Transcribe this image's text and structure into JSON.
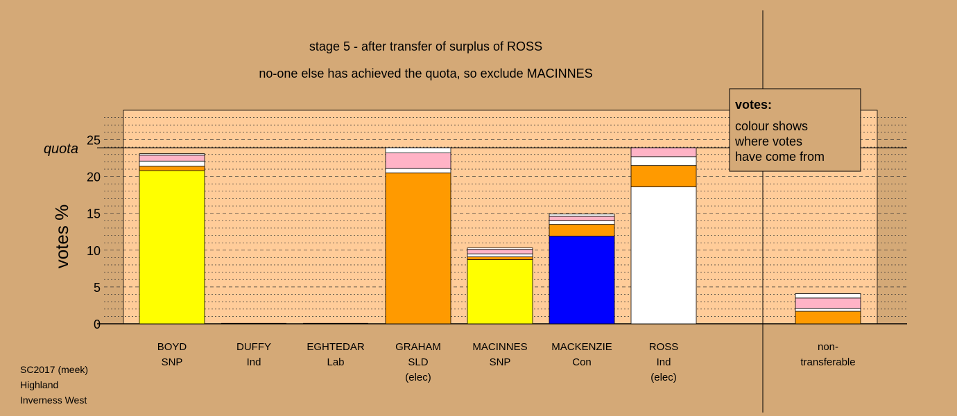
{
  "chart_data": {
    "type": "bar",
    "title": "stage 5 - after transfer of surplus of ROSS",
    "subtitle": "no-one else has achieved the quota, so exclude MACINNES",
    "ylabel": "votes %",
    "ylim": [
      0,
      29
    ],
    "yticks": [
      0,
      5,
      10,
      15,
      20,
      25
    ],
    "quota": 23.9,
    "quota_label": "quota",
    "grid": true,
    "legend": {
      "position": "top-right",
      "title": "votes:",
      "lines": [
        "colour shows",
        "where votes",
        "have come from"
      ]
    },
    "colors": {
      "SNP": "#ffff00",
      "SLD": "#ff9a00",
      "Con": "#0000ff",
      "Ind": "#ffffff",
      "Lab": "#ff0000",
      "other": "#ffb3c6",
      "plot_bg": "#ffcc99",
      "background": "#d4a977"
    },
    "categories": [
      {
        "name": "BOYD",
        "party": "SNP",
        "note": "",
        "segments": [
          {
            "from": "SNP",
            "value": 20.8
          },
          {
            "from": "SLD",
            "value": 0.6
          },
          {
            "from": "Ind",
            "value": 0.7
          },
          {
            "from": "other",
            "value": 0.8
          },
          {
            "from": "Ind",
            "value": 0.2
          }
        ]
      },
      {
        "name": "DUFFY",
        "party": "Ind",
        "note": "",
        "segments": []
      },
      {
        "name": "EGHTEDAR",
        "party": "Lab",
        "note": "",
        "segments": []
      },
      {
        "name": "GRAHAM",
        "party": "SLD",
        "note": "(elec)",
        "segments": [
          {
            "from": "SLD",
            "value": 20.5
          },
          {
            "from": "Ind",
            "value": 0.6
          },
          {
            "from": "other",
            "value": 2.1
          },
          {
            "from": "Ind",
            "value": 0.7
          }
        ]
      },
      {
        "name": "MACINNES",
        "party": "SNP",
        "note": "",
        "segments": [
          {
            "from": "SNP",
            "value": 8.7
          },
          {
            "from": "SLD",
            "value": 0.4
          },
          {
            "from": "Ind",
            "value": 0.4
          },
          {
            "from": "other",
            "value": 0.6
          },
          {
            "from": "Ind",
            "value": 0.2
          }
        ]
      },
      {
        "name": "MACKENZIE",
        "party": "Con",
        "note": "",
        "segments": [
          {
            "from": "Con",
            "value": 11.9
          },
          {
            "from": "SLD",
            "value": 1.6
          },
          {
            "from": "Ind",
            "value": 0.5
          },
          {
            "from": "other",
            "value": 0.6
          },
          {
            "from": "Ind",
            "value": 0.3
          }
        ]
      },
      {
        "name": "ROSS",
        "party": "Ind",
        "note": "(elec)",
        "segments": [
          {
            "from": "Ind",
            "value": 18.6
          },
          {
            "from": "SLD",
            "value": 2.9
          },
          {
            "from": "Ind",
            "value": 1.2
          },
          {
            "from": "other",
            "value": 1.2
          }
        ]
      }
    ],
    "nontransferable": {
      "label_lines": [
        "non-",
        "transferable"
      ],
      "segments": [
        {
          "from": "SLD",
          "value": 1.7
        },
        {
          "from": "Ind",
          "value": 0.4
        },
        {
          "from": "other",
          "value": 1.4
        },
        {
          "from": "Ind",
          "value": 0.6
        }
      ]
    }
  },
  "footer": {
    "lines": [
      "SC2017 (meek)",
      "Highland",
      "Inverness West"
    ]
  }
}
